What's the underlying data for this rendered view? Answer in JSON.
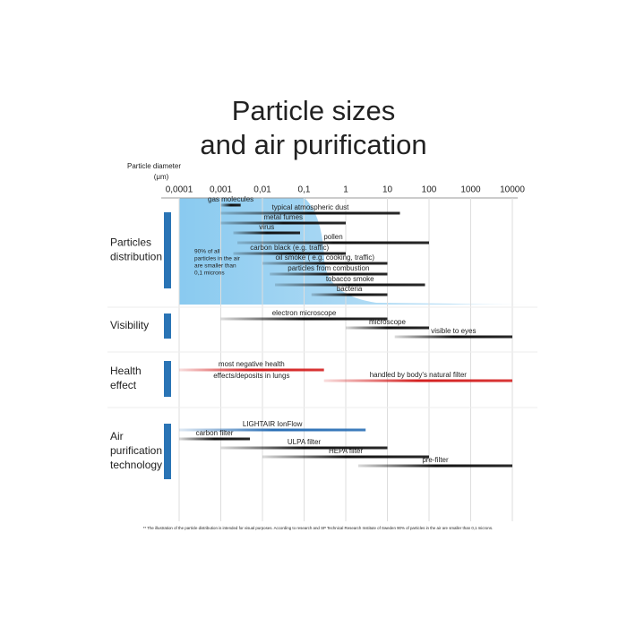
{
  "chart_data": {
    "type": "range",
    "title": [
      "Particle sizes",
      "and air purification"
    ],
    "x_label": [
      "Particle diameter",
      "(μm)"
    ],
    "log_scale": "x",
    "grid": true,
    "xlim": [
      0.0001,
      10000
    ],
    "xticks": [
      {
        "value": 0.0001,
        "label": "0,0001"
      },
      {
        "value": 0.001,
        "label": "0,001"
      },
      {
        "value": 0.01,
        "label": "0,01"
      },
      {
        "value": 0.1,
        "label": "0,1"
      },
      1,
      10,
      100,
      1000,
      10000
    ],
    "note": [
      "90% of all",
      "particles in the air",
      "are smaller than",
      "0,1 microns"
    ],
    "groups": [
      {
        "name": [
          "Particles",
          "distribution"
        ],
        "ranges": [
          {
            "name": [
              "gas molecules"
            ],
            "values": [
              0.001,
              0.003
            ],
            "color": "#111111"
          },
          {
            "name": [
              "typical atmospheric dust"
            ],
            "values": [
              0.001,
              20
            ],
            "color": "#111111"
          },
          {
            "name": [
              "metal fumes"
            ],
            "values": [
              0.001,
              1
            ],
            "color": "#111111"
          },
          {
            "name": [
              "virus"
            ],
            "values": [
              0.002,
              0.08
            ],
            "color": "#111111"
          },
          {
            "name": [
              "pollen"
            ],
            "values": [
              0.0025,
              100
            ],
            "color": "#111111"
          },
          {
            "name": [
              "carbon black (e.g. traffic)"
            ],
            "values": [
              0.002,
              1
            ],
            "color": "#111111"
          },
          {
            "name": [
              "oil smoke ( e.g. cooking, traffic)"
            ],
            "values": [
              0.01,
              10
            ],
            "color": "#111111"
          },
          {
            "name": [
              "particles from combustion"
            ],
            "values": [
              0.015,
              10
            ],
            "color": "#111111"
          },
          {
            "name": [
              "tobacco smoke"
            ],
            "values": [
              0.02,
              80
            ],
            "color": "#111111"
          },
          {
            "name": [
              "bacteria"
            ],
            "values": [
              0.15,
              10
            ],
            "color": "#111111"
          }
        ]
      },
      {
        "name": [
          "Visibility"
        ],
        "ranges": [
          {
            "name": [
              "electron microscope"
            ],
            "values": [
              0.001,
              10
            ],
            "color": "#111111"
          },
          {
            "name": [
              "microscope"
            ],
            "values": [
              1,
              100
            ],
            "color": "#111111"
          },
          {
            "name": [
              "visible to eyes"
            ],
            "values": [
              15,
              10000
            ],
            "color": "#111111"
          }
        ]
      },
      {
        "name": [
          "Health",
          "effect"
        ],
        "ranges": [
          {
            "name": [
              "most negative health",
              "effects/deposits in lungs"
            ],
            "values": [
              0.0001,
              0.3
            ],
            "color": "#d42020"
          },
          {
            "name": [
              "handled by body's natural filter"
            ],
            "values": [
              0.3,
              10000
            ],
            "color": "#d42020"
          }
        ]
      },
      {
        "name": [
          "Air",
          "purification",
          "technology"
        ],
        "ranges": [
          {
            "name": [
              "LIGHTAIR IonFlow"
            ],
            "values": [
              0.0001,
              3
            ],
            "color": "#2a6fb5"
          },
          {
            "name": [
              "carbon filter"
            ],
            "values": [
              0.0001,
              0.005
            ],
            "color": "#111111"
          },
          {
            "name": [
              "ULPA filter"
            ],
            "values": [
              0.001,
              10
            ],
            "color": "#111111"
          },
          {
            "name": [
              "HEPA filter"
            ],
            "values": [
              0.01,
              100
            ],
            "color": "#111111"
          },
          {
            "name": [
              "pre-filter"
            ],
            "values": [
              2,
              10000
            ],
            "color": "#111111"
          }
        ]
      }
    ],
    "footnote": "** The illustration of the particle distribution is intended for visual purposes. According to research and SP Technical Research Institute of Sweden 90% of particles in the air are smaller than 0,1 microns."
  }
}
